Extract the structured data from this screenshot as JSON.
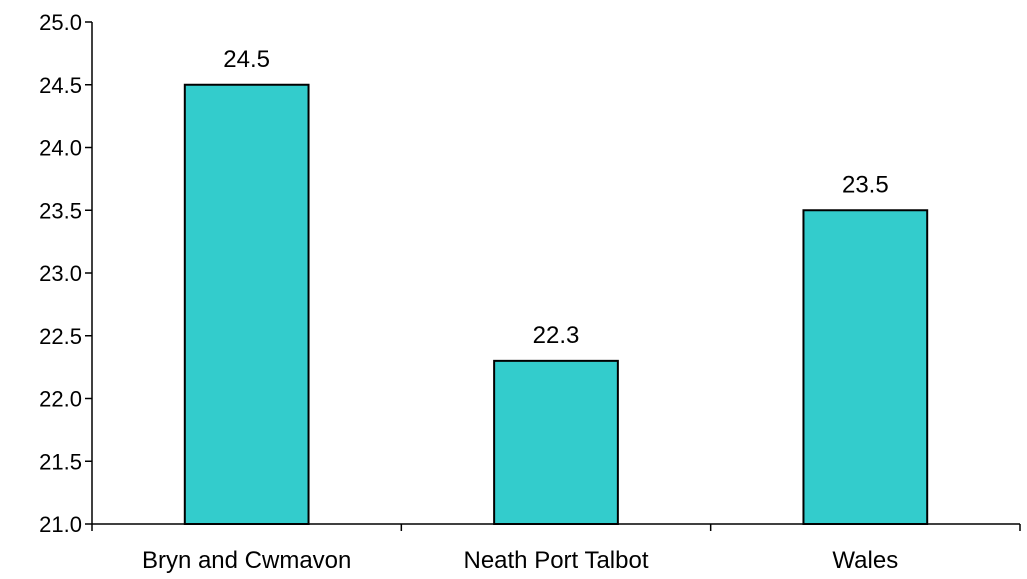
{
  "chart_data": {
    "type": "bar",
    "title": "",
    "xlabel": "",
    "ylabel": "",
    "categories": [
      "Bryn and Cwmavon",
      "Neath Port Talbot",
      "Wales"
    ],
    "values": [
      24.5,
      22.3,
      23.5
    ],
    "data_labels": [
      "24.5",
      "22.3",
      "23.5"
    ],
    "ylim": [
      21.0,
      25.0
    ],
    "yticks": [
      "21.0",
      "21.5",
      "22.0",
      "22.5",
      "23.0",
      "23.5",
      "24.0",
      "24.5",
      "25.0"
    ],
    "grid": false,
    "legend": "none",
    "bar_color": "#33CCCC",
    "bar_edge_color": "#000000"
  }
}
